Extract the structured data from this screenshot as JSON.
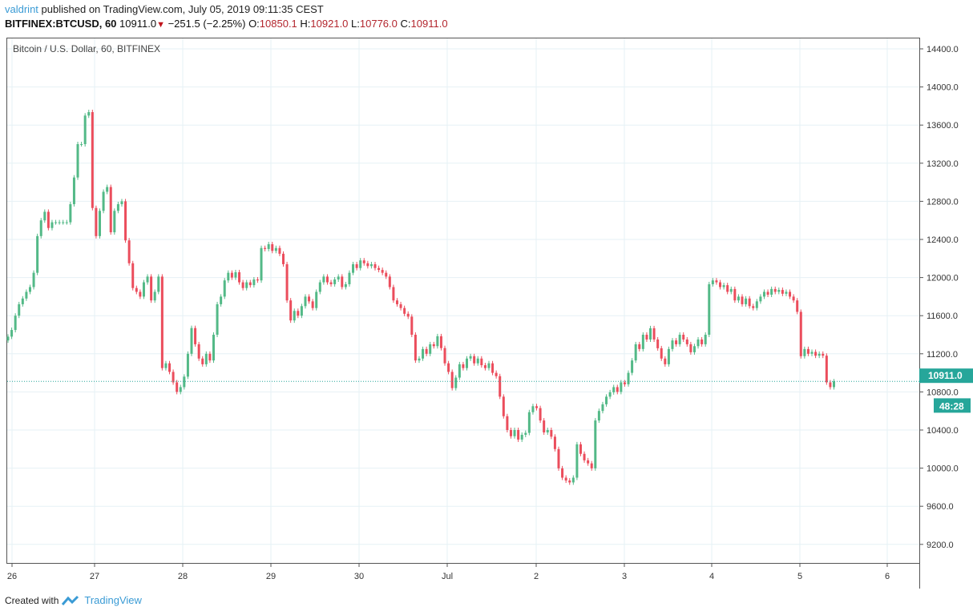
{
  "header": {
    "author": "valdrint",
    "published": "published on TradingView.com, July 05, 2019 09:11:35 CEST",
    "symbol": "BITFINEX:BTCUSD, 60",
    "last": "10911.0",
    "change": "−251.5 (−2.25%)",
    "o_label": "O:",
    "o": "10850.1",
    "h_label": "H:",
    "h": "10921.0",
    "l_label": "L:",
    "l": "10776.0",
    "c_label": "C:",
    "c": "10911.0",
    "down_icon": "triangle-down-icon"
  },
  "footer": {
    "created_with": "Created with",
    "brand": "TradingView",
    "logo_icon": "tradingview-logo-icon"
  },
  "colors": {
    "up": "#53b987",
    "down": "#eb4d5c",
    "last_price": "#26a69a",
    "grid": "#e6f1f5"
  },
  "chart_data": {
    "type": "candlestick",
    "title": "Bitcoin / U.S. Dollar, 60, BITFINEX",
    "interval_minutes": 60,
    "ylim": [
      8960,
      14560
    ],
    "y_ticks": [
      "9200.0",
      "9600.0",
      "10000.0",
      "10400.0",
      "10800.0",
      "11200.0",
      "11600.0",
      "12000.0",
      "12400.0",
      "12800.0",
      "13200.0",
      "13600.0",
      "14000.0",
      "14400.0"
    ],
    "x_ticks": [
      "26",
      "27",
      "28",
      "29",
      "30",
      "Jul",
      "2",
      "3",
      "4",
      "5",
      "6"
    ],
    "grid": true,
    "last_price_label": "10911.0",
    "countdown_label": "48:28",
    "first_candle": "Jun 25 23:00",
    "close": [
      11380,
      11450,
      11600,
      11720,
      11780,
      11850,
      11900,
      12050,
      12435,
      12600,
      12690,
      12520,
      12580,
      12580,
      12580,
      12580,
      12580,
      12770,
      13050,
      13400,
      13400,
      13700,
      13736,
      12730,
      12435,
      12700,
      12900,
      12950,
      12475,
      12700,
      12770,
      12800,
      12390,
      12150,
      11890,
      11850,
      11800,
      11950,
      12010,
      11760,
      11850,
      12010,
      11050,
      11100,
      11010,
      10900,
      10800,
      10850,
      10960,
      11200,
      11470,
      11300,
      11150,
      11090,
      11200,
      11130,
      11400,
      11720,
      11800,
      11970,
      12050,
      12000,
      12056,
      11950,
      11890,
      11950,
      11920,
      11980,
      11970,
      12310,
      12300,
      12350,
      12280,
      12310,
      12250,
      12140,
      11760,
      11550,
      11650,
      11600,
      11700,
      11800,
      11750,
      11680,
      11850,
      11950,
      12010,
      11950,
      11930,
      11980,
      12010,
      11900,
      11930,
      12050,
      12140,
      12100,
      12180,
      12150,
      12120,
      12140,
      12100,
      12080,
      12050,
      12010,
      11900,
      11760,
      11720,
      11680,
      11620,
      11590,
      11400,
      11130,
      11150,
      11250,
      11200,
      11300,
      11280,
      11384,
      11260,
      11100,
      11010,
      10840,
      10950,
      11090,
      11050,
      11150,
      11175,
      11100,
      11150,
      11080,
      11050,
      11100,
      11000,
      10965,
      10750,
      10545,
      10400,
      10335,
      10400,
      10300,
      10350,
      10370,
      10587,
      10650,
      10630,
      10500,
      10375,
      10400,
      10330,
      10200,
      9998,
      9900,
      9870,
      9850,
      9900,
      10250,
      10150,
      10082,
      10050,
      9998,
      10500,
      10600,
      10670,
      10750,
      10796,
      10850,
      10800,
      10900,
      10880,
      11000,
      11130,
      11300,
      11250,
      11400,
      11350,
      11468,
      11350,
      11258,
      11150,
      11090,
      11250,
      11340,
      11300,
      11400,
      11350,
      11300,
      11216,
      11280,
      11350,
      11300,
      11400,
      11930,
      11970,
      11950,
      11900,
      11920,
      11850,
      11880,
      11760,
      11800,
      11720,
      11780,
      11700,
      11680,
      11750,
      11800,
      11850,
      11820,
      11880,
      11850,
      11870,
      11830,
      11850,
      11800,
      11760,
      11640,
      11175,
      11250,
      11200,
      11220,
      11180,
      11200,
      11180,
      10900,
      10850,
      10911
    ]
  }
}
